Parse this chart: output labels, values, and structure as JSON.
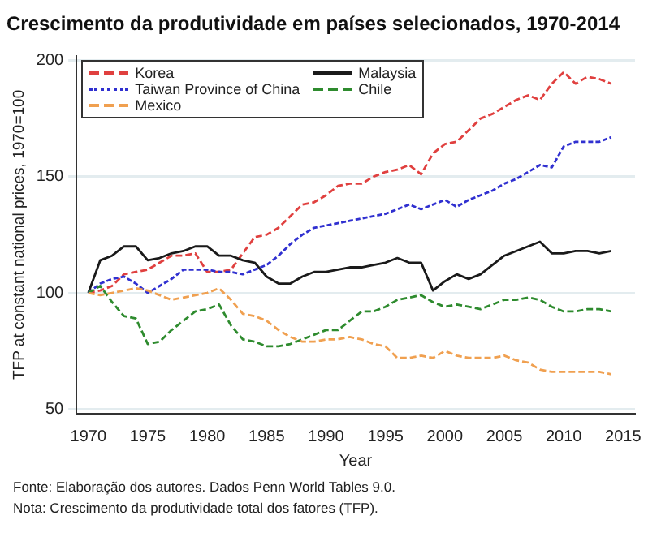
{
  "chart_data": {
    "type": "line",
    "title": "Crescimento da produtividade em países selecionados, 1970-2014",
    "xlabel": "Year",
    "ylabel": "TFP at constant national prices, 1970=100",
    "x": [
      1970,
      1971,
      1972,
      1973,
      1974,
      1975,
      1976,
      1977,
      1978,
      1979,
      1980,
      1981,
      1982,
      1983,
      1984,
      1985,
      1986,
      1987,
      1988,
      1989,
      1990,
      1991,
      1992,
      1993,
      1994,
      1995,
      1996,
      1997,
      1998,
      1999,
      2000,
      2001,
      2002,
      2003,
      2004,
      2005,
      2006,
      2007,
      2008,
      2009,
      2010,
      2011,
      2012,
      2013,
      2014
    ],
    "series": [
      {
        "name": "Korea",
        "color": "#e0403f",
        "line_style": "dashed",
        "values": [
          100,
          101,
          103,
          108,
          109,
          110,
          113,
          116,
          116,
          117,
          109,
          109,
          110,
          117,
          124,
          125,
          128,
          133,
          138,
          139,
          142,
          146,
          147,
          147,
          150,
          152,
          153,
          155,
          151,
          160,
          164,
          165,
          170,
          175,
          177,
          180,
          183,
          185,
          183,
          190,
          195,
          190,
          193,
          192,
          190
        ]
      },
      {
        "name": "Malaysia",
        "color": "#1a1a1a",
        "line_style": "solid",
        "values": [
          100,
          114,
          116,
          120,
          120,
          114,
          115,
          117,
          118,
          120,
          120,
          116,
          116,
          114,
          113,
          107,
          104,
          104,
          107,
          109,
          109,
          110,
          111,
          111,
          112,
          113,
          115,
          113,
          113,
          101,
          105,
          108,
          106,
          108,
          112,
          116,
          118,
          120,
          122,
          117,
          117,
          118,
          118,
          117,
          118
        ]
      },
      {
        "name": "Taiwan Province of China",
        "color": "#3030d0",
        "line_style": "dotted",
        "values": [
          100,
          104,
          106,
          107,
          104,
          100,
          103,
          106,
          110,
          110,
          110,
          109,
          109,
          108,
          110,
          112,
          116,
          121,
          125,
          128,
          129,
          130,
          131,
          132,
          133,
          134,
          136,
          138,
          136,
          138,
          140,
          137,
          140,
          142,
          144,
          147,
          149,
          152,
          155,
          154,
          163,
          165,
          165,
          165,
          167
        ]
      },
      {
        "name": "Chile",
        "color": "#2e8b2e",
        "line_style": "dashed",
        "values": [
          100,
          103,
          96,
          90,
          89,
          78,
          79,
          84,
          88,
          92,
          93,
          95,
          86,
          80,
          79,
          77,
          77,
          78,
          80,
          82,
          84,
          84,
          88,
          92,
          92,
          94,
          97,
          98,
          99,
          96,
          94,
          95,
          94,
          93,
          95,
          97,
          97,
          98,
          97,
          94,
          92,
          92,
          93,
          93,
          92
        ]
      },
      {
        "name": "Mexico",
        "color": "#f0a050",
        "line_style": "dashed",
        "values": [
          100,
          99,
          100,
          101,
          102,
          101,
          99,
          97,
          98,
          99,
          100,
          102,
          97,
          91,
          90,
          88,
          84,
          81,
          79,
          79,
          80,
          80,
          81,
          80,
          78,
          77,
          72,
          72,
          73,
          72,
          75,
          73,
          72,
          72,
          72,
          73,
          71,
          70,
          67,
          66,
          66,
          66,
          66,
          66,
          65
        ]
      }
    ],
    "xlim": [
      1969,
      2016
    ],
    "xticks": [
      1970,
      1975,
      1980,
      1985,
      1990,
      1995,
      2000,
      2005,
      2010,
      2015
    ],
    "ylim": [
      48,
      202
    ],
    "yticks": [
      50,
      100,
      150,
      200
    ],
    "grid": "y",
    "legend": "top left",
    "annotations": [
      "Fonte: Elaboração dos autores. Dados Penn World Tables 9.0.",
      "Nota: Crescimento da produtividade total dos fatores (TFP)."
    ]
  }
}
